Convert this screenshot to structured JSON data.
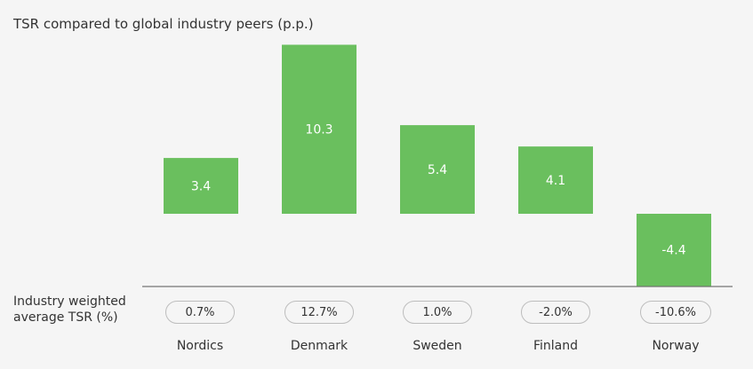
{
  "chart_data": {
    "type": "bar",
    "title": "TSR compared to global industry peers (p.p.)",
    "categories": [
      "Nordics",
      "Denmark",
      "Sweden",
      "Finland",
      "Norway"
    ],
    "values": [
      3.4,
      10.3,
      5.4,
      4.1,
      -4.4
    ],
    "value_labels": [
      "3.4",
      "10.3",
      "5.4",
      "4.1",
      "-4.4"
    ],
    "bar_color": "#6abf5e",
    "xlabel": "",
    "ylabel": "",
    "grid": false,
    "legend": "none"
  },
  "weighted_tsr": {
    "label": "Industry weighted average TSR (%)",
    "values": [
      "0.7%",
      "12.7%",
      "1.0%",
      "-2.0%",
      "-10.6%"
    ]
  }
}
